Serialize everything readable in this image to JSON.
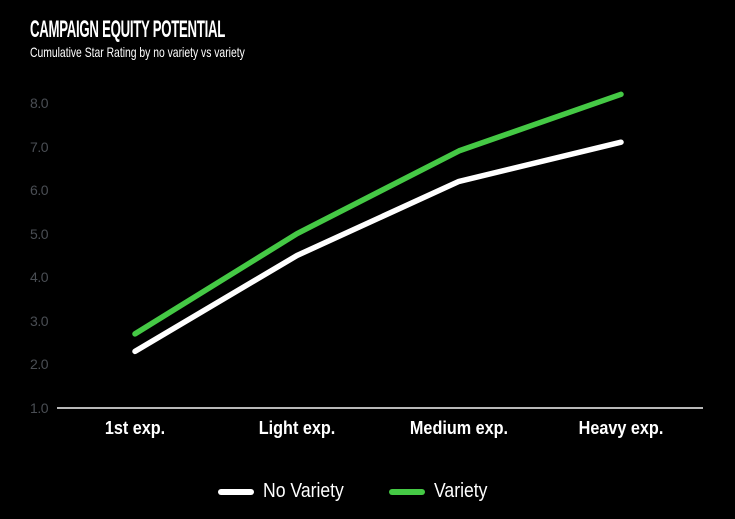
{
  "header": {
    "title": "CAMPAIGN EQUITY POTENTIAL",
    "subtitle": "Cumulative Star Rating by no variety vs variety"
  },
  "chart_data": {
    "type": "line",
    "title": "CAMPAIGN EQUITY POTENTIAL",
    "subtitle": "Cumulative Star Rating by no variety vs variety",
    "categories": [
      "1st exp.",
      "Light exp.",
      "Medium exp.",
      "Heavy exp."
    ],
    "series": [
      {
        "name": "No Variety",
        "color": "#FFFFFF",
        "values": [
          2.3,
          4.5,
          6.2,
          7.1
        ]
      },
      {
        "name": "Variety",
        "color": "#45C945",
        "values": [
          2.7,
          5.0,
          6.9,
          8.2
        ]
      }
    ],
    "xlabel": "",
    "ylabel": "",
    "ylim": [
      1.0,
      8.0
    ],
    "ytick_labels": [
      "1.0",
      "2.0",
      "3.0",
      "4.0",
      "5.0",
      "6.0",
      "7.0",
      "8.0"
    ],
    "grid": false,
    "legend_position": "bottom"
  },
  "colors": {
    "background": "#000000",
    "axis_line": "#F5F5F5",
    "tick_label": "#4A4E54",
    "text": "#FFFFFF",
    "accent_green": "#45C945"
  }
}
